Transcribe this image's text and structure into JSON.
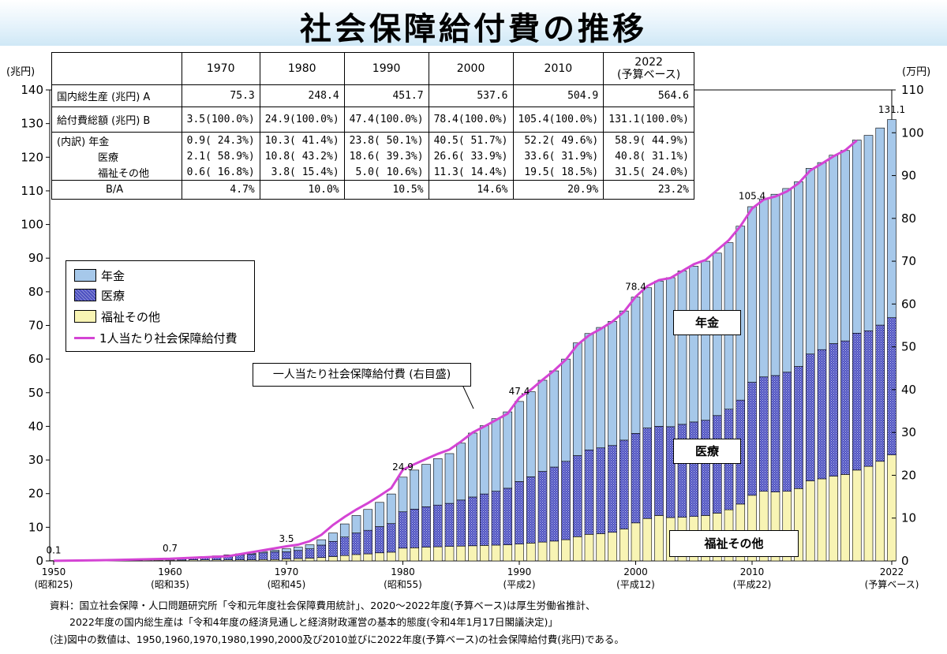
{
  "title": "社会保障給付費の推移",
  "left_unit": "(兆円)",
  "right_unit": "(万円)",
  "table": {
    "headers": [
      "1970",
      "1980",
      "1990",
      "2000",
      "2010",
      "2022",
      "(予算ベース)"
    ],
    "rows": [
      {
        "label": "国内総生産 (兆円) A",
        "cells": [
          "75.3",
          "248.4",
          "451.7",
          "537.6",
          "504.9",
          "564.6"
        ]
      },
      {
        "label": "給付費総額 (兆円) B",
        "cells": [
          "3.5(100.0%)",
          "24.9(100.0%)",
          "47.4(100.0%)",
          "78.4(100.0%)",
          "105.4(100.0%)",
          "131.1(100.0%)"
        ]
      },
      {
        "label": "(内訳) 年金",
        "cells": [
          "0.9( 24.3%)",
          "10.3( 41.4%)",
          "23.8( 50.1%)",
          "40.5( 51.7%)",
          "52.2( 49.6%)",
          "58.9( 44.9%)"
        ]
      },
      {
        "label": "医療",
        "cells": [
          "2.1( 58.9%)",
          "10.8( 43.2%)",
          "18.6( 39.3%)",
          "26.6( 33.9%)",
          "33.6( 31.9%)",
          "40.8( 31.1%)"
        ]
      },
      {
        "label": "福祉その他",
        "cells": [
          "0.6( 16.8%)",
          "3.8( 15.4%)",
          "5.0( 10.6%)",
          "11.3( 14.4%)",
          "19.5( 18.5%)",
          "31.5( 24.0%)"
        ]
      },
      {
        "label": "B/A",
        "cells": [
          "4.7%",
          "10.0%",
          "10.5%",
          "14.6%",
          "20.9%",
          "23.2%"
        ]
      }
    ]
  },
  "legend": {
    "pension": "年金",
    "medical": "医療",
    "welfare": "福祉その他",
    "per_capita": "1人当たり社会保障給付費"
  },
  "boxes": {
    "pension": "年金",
    "medical": "医療",
    "welfare": "福祉その他"
  },
  "callout": "一人当たり社会保障給付費 (右目盛)",
  "notes": [
    "資料：国立社会保障・人口問題研究所「令和元年度社会保障費用統計」、2020～2022年度(予算ベース)は厚生労働省推計、",
    "2022年度の国内総生産は「令和4年度の経済見通しと経済財政運営の基本的態度(令和4年1月17日閣議決定)」",
    "(注)図中の数値は、1950,1960,1970,1980,1990,2000及び2010並びに2022年度(予算ベース)の社会保障給付費(兆円)である。"
  ],
  "colors": {
    "pension": "#a6c8ea",
    "medical": "#4b4fc0",
    "welfare": "#f8f4b4",
    "per_capita": "#d444d4"
  },
  "chart_data": {
    "type": "bar",
    "stacked": true,
    "x_ticks": [
      {
        "year": 1950,
        "line1": "1950",
        "line2": "(昭和25)"
      },
      {
        "year": 1960,
        "line1": "1960",
        "line2": "(昭和35)"
      },
      {
        "year": 1970,
        "line1": "1970",
        "line2": "(昭和45)"
      },
      {
        "year": 1980,
        "line1": "1980",
        "line2": "(昭和55)"
      },
      {
        "year": 1990,
        "line1": "1990",
        "line2": "(平成2)"
      },
      {
        "year": 2000,
        "line1": "2000",
        "line2": "(平成12)"
      },
      {
        "year": 2010,
        "line1": "2010",
        "line2": "(平成22)"
      },
      {
        "year": 2022,
        "line1": "2022",
        "line2": "(予算ベース)"
      }
    ],
    "ylim_left": [
      0,
      140
    ],
    "ylim_right": [
      0,
      110
    ],
    "y_ticks_left": [
      0,
      10,
      20,
      30,
      40,
      50,
      60,
      70,
      80,
      90,
      100,
      110,
      120,
      130,
      140
    ],
    "y_ticks_right": [
      0,
      10,
      20,
      30,
      40,
      50,
      60,
      70,
      80,
      90,
      100,
      110
    ],
    "years": [
      1950,
      1951,
      1952,
      1953,
      1954,
      1955,
      1956,
      1957,
      1958,
      1959,
      1960,
      1961,
      1962,
      1963,
      1964,
      1965,
      1966,
      1967,
      1968,
      1969,
      1970,
      1971,
      1972,
      1973,
      1974,
      1975,
      1976,
      1977,
      1978,
      1979,
      1980,
      1981,
      1982,
      1983,
      1984,
      1985,
      1986,
      1987,
      1988,
      1989,
      1990,
      1991,
      1992,
      1993,
      1994,
      1995,
      1996,
      1997,
      1998,
      1999,
      2000,
      2001,
      2002,
      2003,
      2004,
      2005,
      2006,
      2007,
      2008,
      2009,
      2010,
      2011,
      2012,
      2013,
      2014,
      2015,
      2016,
      2017,
      2018,
      2019,
      2020,
      2021,
      2022
    ],
    "series": [
      {
        "name": "年金",
        "values": [
          0,
          0,
          0,
          0,
          0,
          0,
          0,
          0,
          0,
          0,
          0.1,
          0.1,
          0.1,
          0.2,
          0.2,
          0.2,
          0.3,
          0.3,
          0.4,
          0.5,
          0.9,
          1.0,
          1.2,
          1.6,
          2.5,
          3.9,
          5.2,
          6.2,
          7.2,
          8.8,
          10.3,
          11.6,
          12.6,
          13.8,
          14.8,
          16.9,
          19.0,
          20.3,
          21.6,
          22.7,
          23.8,
          25.3,
          27.1,
          28.6,
          30.4,
          33.5,
          34.6,
          35.8,
          36.9,
          38.4,
          40.5,
          41.7,
          43.2,
          44.3,
          45.6,
          46.3,
          47.3,
          48.3,
          49.5,
          51.7,
          52.2,
          52.9,
          53.9,
          54.6,
          54.9,
          55.2,
          55.6,
          56.0,
          56.6,
          57.4,
          58.1,
          58.6,
          58.9
        ]
      },
      {
        "name": "医療",
        "values": [
          0,
          0,
          0.1,
          0.1,
          0.1,
          0.2,
          0.2,
          0.2,
          0.3,
          0.3,
          0.4,
          0.5,
          0.6,
          0.8,
          1.0,
          1.3,
          1.5,
          1.7,
          2.0,
          2.3,
          2.1,
          2.4,
          2.8,
          3.7,
          4.5,
          5.5,
          6.4,
          7.0,
          7.8,
          8.5,
          10.8,
          11.5,
          12.0,
          12.4,
          12.8,
          13.7,
          14.5,
          15.3,
          16.0,
          16.8,
          18.6,
          19.7,
          21.0,
          22.0,
          23.3,
          24.1,
          25.1,
          25.5,
          25.8,
          26.4,
          26.6,
          26.9,
          26.5,
          27.0,
          27.6,
          28.1,
          28.3,
          29.0,
          29.9,
          30.9,
          33.6,
          34.0,
          34.6,
          35.4,
          36.3,
          37.7,
          38.4,
          39.4,
          39.7,
          40.7,
          40.3,
          40.5,
          40.8
        ]
      },
      {
        "name": "福祉その他",
        "values": [
          0.1,
          0.1,
          0.1,
          0.1,
          0.1,
          0.1,
          0.1,
          0.1,
          0.2,
          0.2,
          0.2,
          0.2,
          0.3,
          0.3,
          0.3,
          0.3,
          0.3,
          0.3,
          0.4,
          0.4,
          0.6,
          0.7,
          0.8,
          1.0,
          1.3,
          1.6,
          1.9,
          2.1,
          2.4,
          2.6,
          3.8,
          3.9,
          4.1,
          4.2,
          4.3,
          4.4,
          4.5,
          4.6,
          4.7,
          4.8,
          5.0,
          5.3,
          5.6,
          5.9,
          6.3,
          7.2,
          7.9,
          8.1,
          8.5,
          9.5,
          11.3,
          12.6,
          13.5,
          12.9,
          13.0,
          13.2,
          13.5,
          14.2,
          15.2,
          16.9,
          19.5,
          20.7,
          20.5,
          20.7,
          21.5,
          23.8,
          24.4,
          25.2,
          25.7,
          27.0,
          28.1,
          29.6,
          31.5
        ]
      },
      {
        "name": "1人当たり社会保障給付費",
        "axis": "right",
        "years": [
          1950,
          1955,
          1960,
          1965,
          1970,
          1971,
          1972,
          1973,
          1974,
          1975,
          1976,
          1977,
          1978,
          1979,
          1980,
          1981,
          1982,
          1983,
          1984,
          1985,
          1986,
          1987,
          1988,
          1989,
          1990,
          1991,
          1992,
          1993,
          1994,
          1995,
          1996,
          1997,
          1998,
          1999,
          2000,
          2001,
          2002,
          2003,
          2004,
          2005,
          2006,
          2007,
          2008,
          2009,
          2010,
          2011,
          2012,
          2013,
          2014,
          2015,
          2016,
          2017,
          2018,
          2019
        ],
        "values": [
          0.02,
          0.2,
          0.5,
          1.1,
          3.4,
          3.8,
          4.6,
          6.1,
          8.4,
          10.3,
          12.0,
          13.5,
          15.2,
          17.0,
          21.3,
          22.6,
          23.8,
          25.0,
          26.0,
          27.9,
          30.0,
          31.4,
          32.9,
          34.4,
          38.1,
          40.0,
          42.3,
          44.5,
          47.0,
          50.5,
          52.7,
          54.2,
          55.9,
          58.2,
          61.7,
          64.2,
          65.6,
          66.1,
          67.7,
          69.3,
          70.3,
          72.6,
          74.9,
          78.2,
          82.3,
          84.4,
          85.1,
          86.3,
          88.2,
          91.2,
          92.8,
          94.5,
          95.9,
          98.2
        ]
      }
    ],
    "data_labels": [
      {
        "year": 1950,
        "text": "0.1",
        "value": 0.1
      },
      {
        "year": 1960,
        "text": "0.7",
        "value": 0.7
      },
      {
        "year": 1970,
        "text": "3.5",
        "value": 3.5
      },
      {
        "year": 1980,
        "text": "24.9",
        "value": 24.9
      },
      {
        "year": 1990,
        "text": "47.4",
        "value": 47.4
      },
      {
        "year": 2000,
        "text": "78.4",
        "value": 78.4
      },
      {
        "year": 2010,
        "text": "105.4",
        "value": 105.4
      },
      {
        "year": 2022,
        "text": "131.1",
        "value": 131.1
      }
    ]
  }
}
